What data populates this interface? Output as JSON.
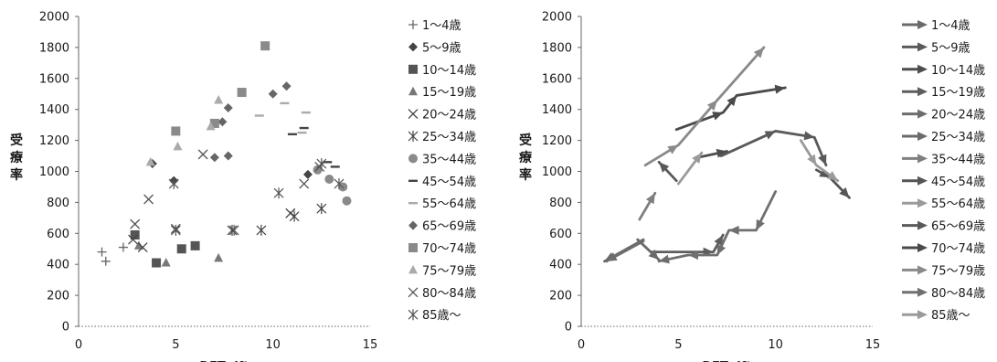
{
  "chart_data": [
    {
      "type": "scatter",
      "xlabel": "DFT dft",
      "ylabel": "受療率",
      "xlim": [
        0,
        15
      ],
      "ylim": [
        0,
        2000
      ],
      "xticks": [
        "0",
        "5",
        "10",
        "15"
      ],
      "yticks": [
        "0",
        "200",
        "400",
        "600",
        "800",
        "1000",
        "1200",
        "1400",
        "1600",
        "1800",
        "2000"
      ],
      "legend_position": "right",
      "series": [
        {
          "name": "1～4歳",
          "marker": "plus",
          "color": "#666666",
          "points": [
            [
              1.2,
              480
            ],
            [
              1.4,
              420
            ],
            [
              2.3,
              510
            ]
          ]
        },
        {
          "name": "5～9歳",
          "marker": "diamond",
          "color": "#444444",
          "points": [
            [
              3.8,
              1050
            ],
            [
              4.9,
              940
            ],
            [
              11.8,
              980
            ]
          ]
        },
        {
          "name": "10～14歳",
          "marker": "square",
          "color": "#555555",
          "points": [
            [
              2.9,
              590
            ],
            [
              4.0,
              410
            ],
            [
              5.3,
              500
            ],
            [
              6.0,
              520
            ]
          ]
        },
        {
          "name": "15～19歳",
          "marker": "triangle",
          "color": "#777777",
          "points": [
            [
              3.1,
              520
            ],
            [
              4.5,
              410
            ],
            [
              7.2,
              440
            ]
          ]
        },
        {
          "name": "20～24歳",
          "marker": "x",
          "color": "#444444",
          "points": [
            [
              2.8,
              560
            ],
            [
              3.3,
              510
            ],
            [
              10.9,
              730
            ]
          ]
        },
        {
          "name": "25～34歳",
          "marker": "asterisk",
          "color": "#444444",
          "points": [
            [
              7.9,
              620
            ],
            [
              9.4,
              620
            ],
            [
              11.1,
              710
            ],
            [
              12.5,
              760
            ]
          ]
        },
        {
          "name": "35～44歳",
          "marker": "circle",
          "color": "#8a8a8a",
          "points": [
            [
              12.3,
              1010
            ],
            [
              12.9,
              950
            ],
            [
              13.6,
              900
            ],
            [
              13.8,
              810
            ]
          ]
        },
        {
          "name": "45～54歳",
          "marker": "dash",
          "color": "#444444",
          "points": [
            [
              11.0,
              1240
            ],
            [
              11.6,
              1280
            ],
            [
              12.8,
              1060
            ],
            [
              13.2,
              1030
            ]
          ]
        },
        {
          "name": "55～64歳",
          "marker": "dash",
          "color": "#aaaaaa",
          "points": [
            [
              9.3,
              1360
            ],
            [
              10.6,
              1440
            ],
            [
              11.7,
              1380
            ],
            [
              11.5,
              1250
            ]
          ]
        },
        {
          "name": "65～69歳",
          "marker": "diamond",
          "color": "#666666",
          "points": [
            [
              7.0,
              1090
            ],
            [
              7.7,
              1100
            ],
            [
              7.7,
              1410
            ],
            [
              10.0,
              1500
            ],
            [
              10.7,
              1550
            ],
            [
              7.4,
              1320
            ]
          ]
        },
        {
          "name": "70～74歳",
          "marker": "square",
          "color": "#8a8a8a",
          "points": [
            [
              5.0,
              1260
            ],
            [
              7.0,
              1310
            ],
            [
              8.4,
              1510
            ],
            [
              9.6,
              1810
            ]
          ]
        },
        {
          "name": "75～79歳",
          "marker": "triangle",
          "color": "#aaaaaa",
          "points": [
            [
              3.7,
              1060
            ],
            [
              5.1,
              1160
            ],
            [
              6.8,
              1290
            ],
            [
              7.2,
              1460
            ]
          ]
        },
        {
          "name": "80～84歳",
          "marker": "x",
          "color": "#555555",
          "points": [
            [
              2.9,
              660
            ],
            [
              3.6,
              820
            ],
            [
              5.0,
              630
            ],
            [
              6.4,
              1110
            ],
            [
              11.6,
              920
            ],
            [
              12.4,
              1030
            ]
          ]
        },
        {
          "name": "85歳～",
          "marker": "asterisk",
          "color": "#555555",
          "points": [
            [
              4.9,
              920
            ],
            [
              5.0,
              620
            ],
            [
              8.0,
              620
            ],
            [
              10.3,
              860
            ],
            [
              12.5,
              1050
            ],
            [
              13.4,
              920
            ]
          ]
        }
      ]
    },
    {
      "type": "line",
      "xlabel": "DFT dft",
      "ylabel": "受療率",
      "xlim": [
        0,
        15
      ],
      "ylim": [
        0,
        2000
      ],
      "xticks": [
        "0",
        "5",
        "10",
        "15"
      ],
      "yticks": [
        "0",
        "200",
        "400",
        "600",
        "800",
        "1000",
        "1200",
        "1400",
        "1600",
        "1800",
        "2000"
      ],
      "legend_position": "right",
      "series": [
        {
          "name": "1～4歳",
          "color": "#6a6a6a",
          "points": [
            [
              3.2,
              560
            ],
            [
              1.2,
              420
            ]
          ]
        },
        {
          "name": "5～9歳",
          "color": "#5a5a5a",
          "points": [
            [
              4.9,
              940
            ],
            [
              4.0,
              1060
            ]
          ]
        },
        {
          "name": "10～14歳",
          "color": "#4d4d4d",
          "points": [
            [
              6.0,
              1090
            ],
            [
              7.5,
              1130
            ]
          ]
        },
        {
          "name": "15～19歳",
          "color": "#5e5e5e",
          "points": [
            [
              3.6,
              480
            ],
            [
              6.8,
              480
            ],
            [
              7.3,
              590
            ]
          ]
        },
        {
          "name": "20～24歳",
          "color": "#6d6d6d",
          "points": [
            [
              3.2,
              550
            ],
            [
              1.3,
              420
            ]
          ]
        },
        {
          "name": "25～34歳",
          "color": "#6a6a6a",
          "points": [
            [
              2.9,
              560
            ],
            [
              4.0,
              430
            ]
          ]
        },
        {
          "name": "35～44歳",
          "color": "#7f7f7f",
          "points": [
            [
              3.0,
              690
            ],
            [
              3.8,
              860
            ]
          ]
        },
        {
          "name": "45～54歳",
          "color": "#555555",
          "points": [
            [
              12.1,
              1010
            ],
            [
              12.8,
              960
            ],
            [
              13.8,
              830
            ]
          ]
        },
        {
          "name": "55～64歳",
          "color": "#9a9a9a",
          "points": [
            [
              5.0,
              920
            ],
            [
              6.2,
              1120
            ]
          ]
        },
        {
          "name": "65～69歳",
          "color": "#5a5a5a",
          "points": [
            [
              7.2,
              1100
            ],
            [
              10.0,
              1260
            ],
            [
              12.0,
              1220
            ],
            [
              12.6,
              1040
            ]
          ]
        },
        {
          "name": "70～74歳",
          "color": "#4a4a4a",
          "points": [
            [
              4.9,
              1270
            ],
            [
              7.3,
              1380
            ],
            [
              8.0,
              1490
            ],
            [
              10.5,
              1540
            ]
          ]
        },
        {
          "name": "75～79歳",
          "color": "#8a8a8a",
          "points": [
            [
              3.3,
              1040
            ],
            [
              5.0,
              1170
            ],
            [
              7.0,
              1460
            ],
            [
              9.4,
              1800
            ]
          ]
        },
        {
          "name": "80～84歳",
          "color": "#6f6f6f",
          "points": [
            [
              10.0,
              870
            ],
            [
              9.0,
              620
            ],
            [
              7.6,
              620
            ],
            [
              7.0,
              460
            ],
            [
              5.5,
              460
            ],
            [
              4.0,
              420
            ]
          ]
        },
        {
          "name": "85歳～",
          "color": "#9a9a9a",
          "points": [
            [
              11.3,
              1200
            ],
            [
              12.1,
              1040
            ],
            [
              13.2,
              940
            ]
          ]
        }
      ]
    }
  ],
  "colors": {
    "axis": "#666666",
    "gridline": "#cccccc",
    "text": "#1a1a1a"
  }
}
